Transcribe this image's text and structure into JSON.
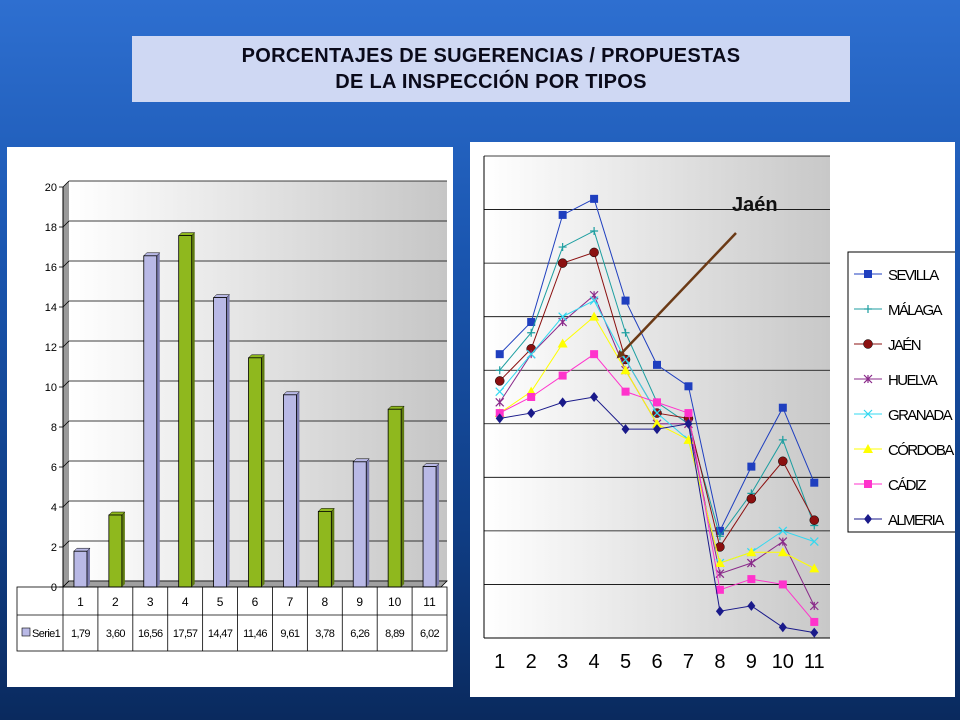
{
  "title": {
    "line1": "PORCENTAJES DE SUGERENCIAS / PROPUESTAS",
    "line2": "DE LA INSPECCIÓN POR TIPOS"
  },
  "colors": {
    "bar_odd": "#b9b9e6",
    "bar_even": "#8fb81e",
    "plot_bg_end": "#c8c8c8",
    "annotation_arrow": "#6b3a16"
  },
  "chart_data": [
    {
      "type": "bar",
      "categories": [
        "1",
        "2",
        "3",
        "4",
        "5",
        "6",
        "7",
        "8",
        "9",
        "10",
        "11"
      ],
      "values": [
        1.79,
        3.6,
        16.56,
        17.57,
        14.47,
        11.46,
        9.61,
        3.78,
        6.26,
        8.89,
        6.02
      ],
      "value_labels": [
        "1,79",
        "3,60",
        "16,56",
        "17,57",
        "14,47",
        "11,46",
        "9,61",
        "3,78",
        "6,26",
        "8,89",
        "6,02"
      ],
      "series_name": "Serie1",
      "ylim": [
        0,
        20
      ],
      "yticks": [
        "0",
        "2",
        "4",
        "6",
        "8",
        "10",
        "12",
        "14",
        "16",
        "18",
        "20"
      ],
      "grid": true,
      "data_table": true
    },
    {
      "type": "line",
      "categories": [
        "1",
        "2",
        "3",
        "4",
        "5",
        "6",
        "7",
        "8",
        "9",
        "10",
        "11"
      ],
      "ylim": [
        0,
        9
      ],
      "grid": true,
      "legend": "right",
      "annotation": "Jaén",
      "series": [
        {
          "name": "SEVILLA",
          "color": "#1f3fbf",
          "marker": "square",
          "values": [
            5.3,
            5.9,
            7.9,
            8.2,
            6.3,
            5.1,
            4.7,
            2.0,
            3.2,
            4.3,
            2.9
          ]
        },
        {
          "name": "MÁLAGA",
          "color": "#1c9ea0",
          "marker": "plus",
          "values": [
            5.0,
            5.7,
            7.3,
            7.6,
            5.7,
            4.4,
            4.0,
            1.9,
            2.7,
            3.7,
            2.1
          ]
        },
        {
          "name": "JAÉN",
          "color": "#8b1010",
          "marker": "circle",
          "values": [
            4.8,
            5.4,
            7.0,
            7.2,
            5.2,
            4.2,
            4.1,
            1.7,
            2.6,
            3.3,
            2.2
          ]
        },
        {
          "name": "HUELVA",
          "color": "#8a2a8a",
          "marker": "star",
          "values": [
            4.4,
            5.3,
            5.9,
            6.4,
            5.0,
            4.0,
            4.0,
            1.2,
            1.4,
            1.8,
            0.6
          ]
        },
        {
          "name": "GRANADA",
          "color": "#33d8f0",
          "marker": "x",
          "values": [
            4.6,
            5.3,
            6.0,
            6.3,
            5.2,
            4.2,
            3.7,
            1.4,
            1.6,
            2.0,
            1.8
          ]
        },
        {
          "name": "CÓRDOBA",
          "color": "#ffff00",
          "marker": "triangle",
          "values": [
            4.2,
            4.6,
            5.5,
            6.0,
            5.0,
            4.0,
            3.7,
            1.4,
            1.6,
            1.6,
            1.3
          ]
        },
        {
          "name": "CÁDIZ",
          "color": "#ff33cc",
          "marker": "square",
          "values": [
            4.2,
            4.5,
            4.9,
            5.3,
            4.6,
            4.4,
            4.2,
            0.9,
            1.1,
            1.0,
            0.3
          ]
        },
        {
          "name": "ALMERIA",
          "color": "#1a1a8a",
          "marker": "diamond",
          "values": [
            4.1,
            4.2,
            4.4,
            4.5,
            3.9,
            3.9,
            4.0,
            0.5,
            0.6,
            0.2,
            0.1
          ]
        }
      ]
    }
  ]
}
